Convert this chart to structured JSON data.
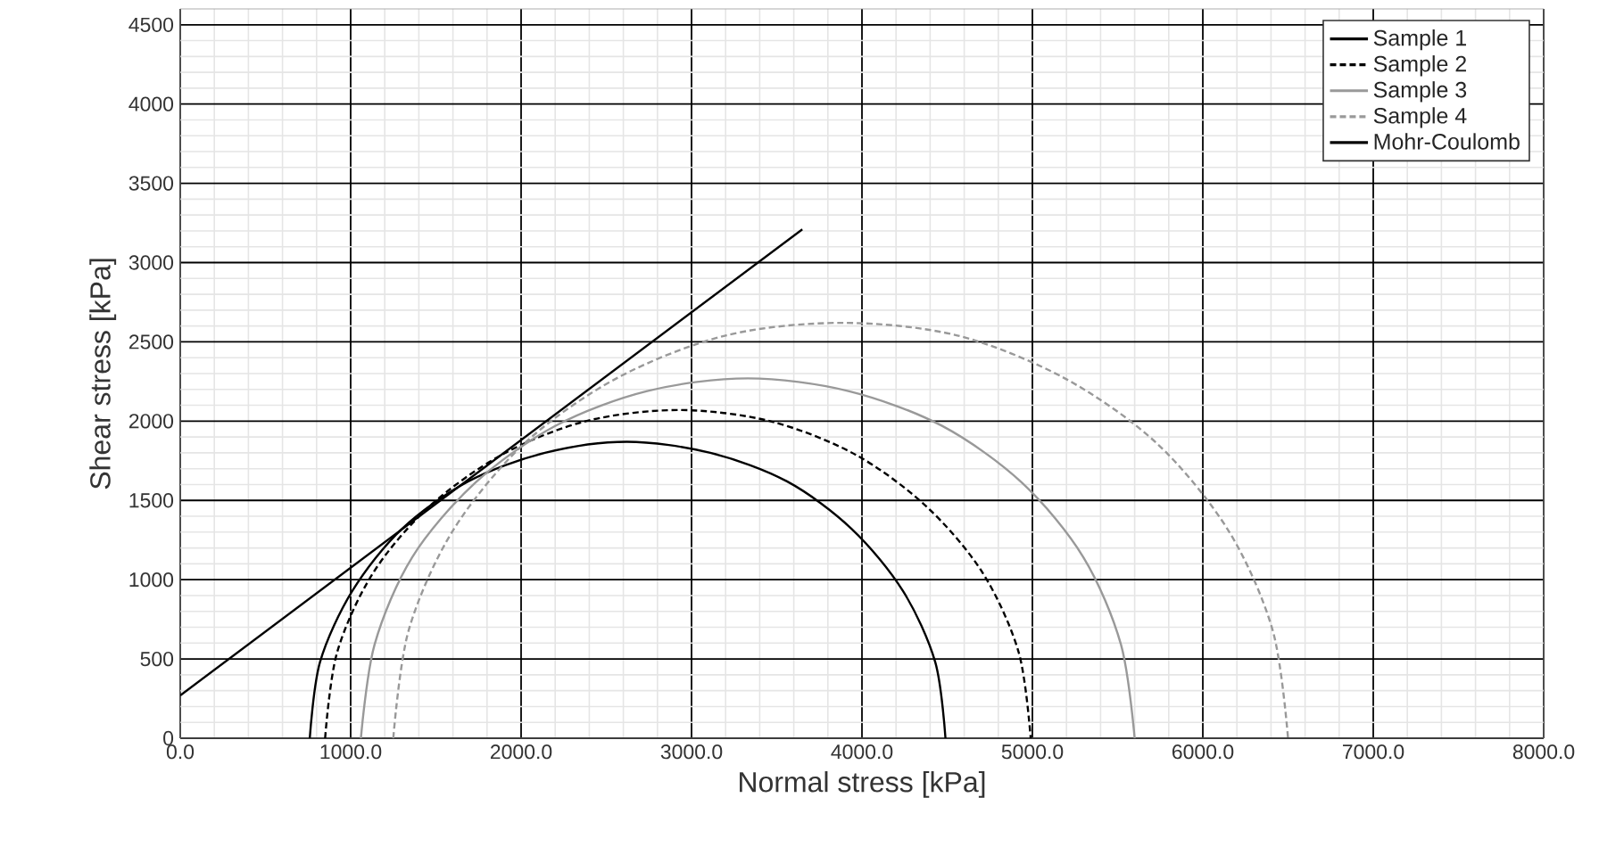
{
  "chart_data": {
    "type": "line",
    "xlabel": "Normal stress [kPa]",
    "ylabel": "Shear stress [kPa]",
    "xlim": [
      0,
      8000
    ],
    "ylim": [
      0,
      4600
    ],
    "xticks": [
      {
        "value": 0,
        "label": "0.0"
      },
      {
        "value": 1000,
        "label": "1000.0"
      },
      {
        "value": 2000,
        "label": "2000.0"
      },
      {
        "value": 3000,
        "label": "3000.0"
      },
      {
        "value": 4000,
        "label": "4000.0"
      },
      {
        "value": 5000,
        "label": "5000.0"
      },
      {
        "value": 6000,
        "label": "6000.0"
      },
      {
        "value": 7000,
        "label": "7000.0"
      },
      {
        "value": 8000,
        "label": "8000.0"
      }
    ],
    "yticks": [
      0,
      500,
      1000,
      1500,
      2000,
      2500,
      3000,
      3500,
      4000,
      4500
    ],
    "grid": true,
    "legend": "top right",
    "marker": "none",
    "series": [
      {
        "name": "Sample 1",
        "color": "#000000",
        "line_style": "solid",
        "x": [
          760,
          820,
          1010,
          1300,
          1690,
          2140,
          2620,
          3110,
          3560,
          3940,
          4240,
          4430,
          4490
        ],
        "values": [
          0,
          480,
          930,
          1320,
          1620,
          1800,
          1870,
          1800,
          1620,
          1320,
          930,
          480,
          0
        ]
      },
      {
        "name": "Sample 2",
        "color": "#000000",
        "line_style": "dashed",
        "x": [
          850,
          920,
          1130,
          1460,
          1890,
          2380,
          2920,
          3460,
          3960,
          4380,
          4710,
          4920,
          4990
        ],
        "values": [
          0,
          540,
          1040,
          1460,
          1790,
          2000,
          2070,
          2000,
          1790,
          1460,
          1040,
          540,
          0
        ]
      },
      {
        "name": "Sample 3",
        "color": "#999999",
        "line_style": "solid",
        "x": [
          1060,
          1140,
          1360,
          1730,
          2200,
          2740,
          3330,
          3920,
          4470,
          4940,
          5300,
          5520,
          5600
        ],
        "values": [
          0,
          590,
          1140,
          1610,
          1970,
          2190,
          2270,
          2190,
          1970,
          1610,
          1140,
          590,
          0
        ]
      },
      {
        "name": "Sample 4",
        "color": "#999999",
        "line_style": "dashed",
        "x": [
          1250,
          1340,
          1600,
          2020,
          2560,
          3200,
          3880,
          4560,
          5190,
          5730,
          6150,
          6410,
          6500
        ],
        "values": [
          0,
          680,
          1310,
          1860,
          2270,
          2540,
          2620,
          2540,
          2270,
          1860,
          1310,
          680,
          0
        ]
      },
      {
        "name": "Mohr-Coulomb",
        "color": "#000000",
        "line_style": "solid",
        "x": [
          0,
          3650
        ],
        "values": [
          270,
          3210
        ]
      }
    ]
  }
}
